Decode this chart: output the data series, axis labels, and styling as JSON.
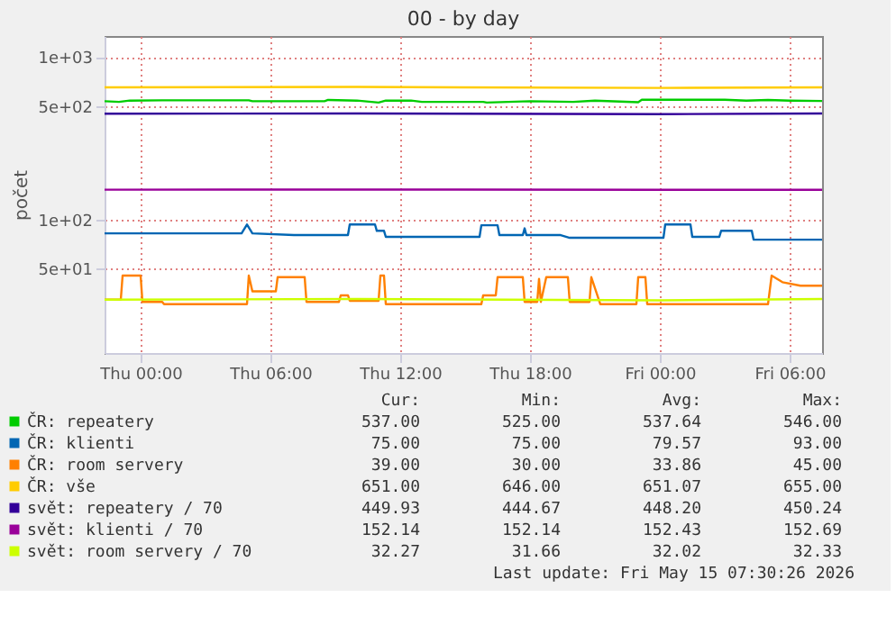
{
  "chart_data": {
    "type": "line",
    "title": "00 - by day",
    "ylabel": "počet",
    "log": true,
    "grid": true,
    "legend": "bottom",
    "xlim": [
      "2026-05-13T22:20",
      "2026-05-15T07:30"
    ],
    "xticks": [
      {
        "value": "2026-05-14T00:00",
        "label": "Thu 00:00"
      },
      {
        "value": "2026-05-14T06:00",
        "label": "Thu 06:00"
      },
      {
        "value": "2026-05-14T12:00",
        "label": "Thu 12:00"
      },
      {
        "value": "2026-05-14T18:00",
        "label": "Thu 18:00"
      },
      {
        "value": "2026-05-15T00:00",
        "label": "Fri 00:00"
      },
      {
        "value": "2026-05-15T06:00",
        "label": "Fri 06:00"
      }
    ],
    "ylim": [
      15,
      1350
    ],
    "yticks": [
      {
        "value": 50,
        "label": "5e+01"
      },
      {
        "value": 100,
        "label": "1e+02"
      },
      {
        "value": 500,
        "label": "5e+02"
      },
      {
        "value": 1000,
        "label": "1e+03"
      }
    ],
    "series": [
      {
        "name": "ČR: repeatery",
        "color": "#00cc00",
        "x": [
          "2026-05-13T22:20",
          "2026-05-13T23:00",
          "2026-05-13T23:30",
          "2026-05-14T01:00",
          "2026-05-14T05:00",
          "2026-05-14T05:10",
          "2026-05-14T08:30",
          "2026-05-14T08:40",
          "2026-05-14T10:00",
          "2026-05-14T11:00",
          "2026-05-14T11:20",
          "2026-05-14T12:30",
          "2026-05-14T13:00",
          "2026-05-14T15:50",
          "2026-05-14T16:00",
          "2026-05-14T18:00",
          "2026-05-14T20:00",
          "2026-05-14T21:00",
          "2026-05-14T23:00",
          "2026-05-14T23:10",
          "2026-05-15T03:00",
          "2026-05-15T04:00",
          "2026-05-15T05:00",
          "2026-05-15T06:00",
          "2026-05-15T07:30"
        ],
        "values": [
          535,
          530,
          540,
          542,
          542,
          535,
          535,
          545,
          540,
          525,
          540,
          540,
          530,
          530,
          525,
          535,
          530,
          540,
          528,
          546,
          546,
          540,
          545,
          540,
          537
        ]
      },
      {
        "name": "ČR: klienti",
        "color": "#0066b3",
        "x": [
          "2026-05-13T22:20",
          "2026-05-14T04:40",
          "2026-05-14T04:55",
          "2026-05-14T05:10",
          "2026-05-14T07:05",
          "2026-05-14T09:35",
          "2026-05-14T09:40",
          "2026-05-14T10:50",
          "2026-05-14T10:55",
          "2026-05-14T11:15",
          "2026-05-14T11:20",
          "2026-05-14T15:40",
          "2026-05-14T15:45",
          "2026-05-14T16:30",
          "2026-05-14T16:35",
          "2026-05-14T17:40",
          "2026-05-14T17:45",
          "2026-05-14T17:50",
          "2026-05-14T19:25",
          "2026-05-14T19:50",
          "2026-05-15T00:10",
          "2026-05-15T00:15",
          "2026-05-15T01:25",
          "2026-05-15T01:30",
          "2026-05-15T02:45",
          "2026-05-15T02:50",
          "2026-05-15T04:15",
          "2026-05-15T04:20",
          "2026-05-15T07:30"
        ],
        "values": [
          82,
          82,
          93,
          82,
          80,
          80,
          93,
          93,
          85,
          85,
          78,
          78,
          92,
          92,
          80,
          80,
          88,
          80,
          80,
          77,
          77,
          93,
          93,
          78,
          78,
          85,
          85,
          75,
          75
        ]
      },
      {
        "name": "ČR: room servery",
        "color": "#ff8000",
        "x": [
          "2026-05-13T22:20",
          "2026-05-13T23:05",
          "2026-05-13T23:10",
          "2026-05-14T00:00",
          "2026-05-14T00:05",
          "2026-05-14T01:00",
          "2026-05-14T01:05",
          "2026-05-14T04:55",
          "2026-05-14T05:00",
          "2026-05-14T05:10",
          "2026-05-14T06:15",
          "2026-05-14T06:20",
          "2026-05-14T07:35",
          "2026-05-14T07:40",
          "2026-05-14T09:10",
          "2026-05-14T09:15",
          "2026-05-14T09:35",
          "2026-05-14T09:40",
          "2026-05-14T11:00",
          "2026-05-14T11:05",
          "2026-05-14T11:15",
          "2026-05-14T11:20",
          "2026-05-14T15:45",
          "2026-05-14T15:50",
          "2026-05-14T16:25",
          "2026-05-14T16:30",
          "2026-05-14T17:40",
          "2026-05-14T17:45",
          "2026-05-14T18:20",
          "2026-05-14T18:25",
          "2026-05-14T18:30",
          "2026-05-14T18:45",
          "2026-05-14T19:45",
          "2026-05-14T19:50",
          "2026-05-14T20:45",
          "2026-05-14T20:50",
          "2026-05-14T21:15",
          "2026-05-14T22:55",
          "2026-05-14T23:00",
          "2026-05-14T23:20",
          "2026-05-14T23:25",
          "2026-05-15T05:00",
          "2026-05-15T05:10",
          "2026-05-15T05:40",
          "2026-05-15T06:30",
          "2026-05-15T07:30"
        ],
        "values": [
          32,
          32,
          45,
          45,
          31,
          31,
          30,
          30,
          45,
          36,
          36,
          44,
          44,
          31,
          31,
          34,
          34,
          31.5,
          31.5,
          45,
          45,
          30,
          30,
          34,
          34,
          44,
          44,
          31,
          31,
          43,
          31,
          44,
          44,
          31,
          31,
          44,
          30,
          30,
          44,
          44,
          30,
          30,
          45,
          41,
          39,
          39
        ]
      },
      {
        "name": "ČR: vše",
        "color": "#ffcc00",
        "x": [
          "2026-05-13T22:20",
          "2026-05-14T10:00",
          "2026-05-15T00:00",
          "2026-05-15T07:30"
        ],
        "values": [
          651,
          655,
          646,
          651
        ]
      },
      {
        "name": "svět: repeatery / 70",
        "color": "#330099",
        "x": [
          "2026-05-13T22:20",
          "2026-05-14T10:00",
          "2026-05-15T00:00",
          "2026-05-15T07:30"
        ],
        "values": [
          448,
          450,
          445,
          450
        ]
      },
      {
        "name": "svět: klienti / 70",
        "color": "#990099",
        "x": [
          "2026-05-13T22:20",
          "2026-05-14T10:00",
          "2026-05-15T00:00",
          "2026-05-15T07:30"
        ],
        "values": [
          152.5,
          152.7,
          152.3,
          152.1
        ]
      },
      {
        "name": "svět: room servery / 70",
        "color": "#ccff00",
        "x": [
          "2026-05-13T22:20",
          "2026-05-14T10:00",
          "2026-05-15T00:00",
          "2026-05-15T07:30"
        ],
        "values": [
          32,
          32.3,
          31.7,
          32.3
        ]
      }
    ],
    "annotations": [
      "Cur:",
      "Min:",
      "Avg:",
      "Max:",
      "537.00",
      "525.00",
      "537.64",
      "546.00",
      "75.00",
      "75.00",
      "79.57",
      "93.00",
      "39.00",
      "30.00",
      "33.86",
      "45.00",
      "651.00",
      "646.00",
      "651.07",
      "655.00",
      "449.93",
      "444.67",
      "448.20",
      "450.24",
      "152.14",
      "152.14",
      "152.43",
      "152.69",
      "32.27",
      "31.66",
      "32.02",
      "32.33",
      "Last update: Fri May 15 07:30:26 2026"
    ]
  }
}
